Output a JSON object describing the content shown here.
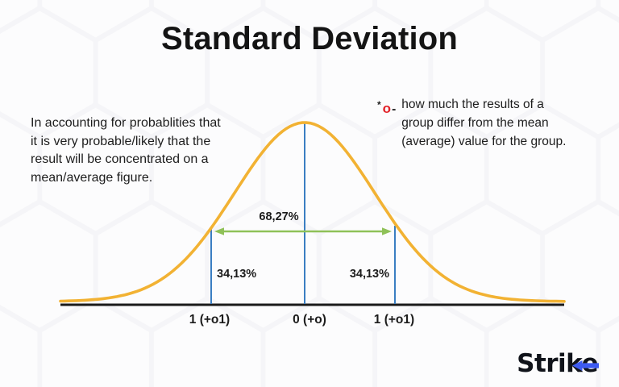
{
  "title": "Standard Deviation",
  "left_note": "In accounting for probablities that it is very probable/likely that the result will be concentrated on a mean/average figure.",
  "sigma_note": {
    "star": "*",
    "symbol": "o",
    "dash": "-",
    "text": "how much the results of a group differ from the mean (average) value for the group."
  },
  "chart_data": {
    "type": "area",
    "description": "stylized normal distribution (bell) curve on a horizontal axis",
    "x_tick_labels": [
      "1 (+o1)",
      "0 (+o)",
      "1 (+o1)"
    ],
    "sigma_lines_at": [
      -1,
      0,
      1
    ],
    "annotations": {
      "center_band_percent": "68,27%",
      "left_half_band_percent": "34,13%",
      "right_half_band_percent": "34,13%"
    },
    "grid": false,
    "legend": false
  },
  "logo": {
    "text_main": "Strik",
    "text_e": "e"
  },
  "colors": {
    "curve_yellow": "#F2B233",
    "sigma_line_blue": "#3A7EC2",
    "arrow_green": "#8FC158",
    "sigma_red": "#E22128",
    "logo_blue": "#3D5AF1",
    "ink": "#1A1A1A"
  }
}
